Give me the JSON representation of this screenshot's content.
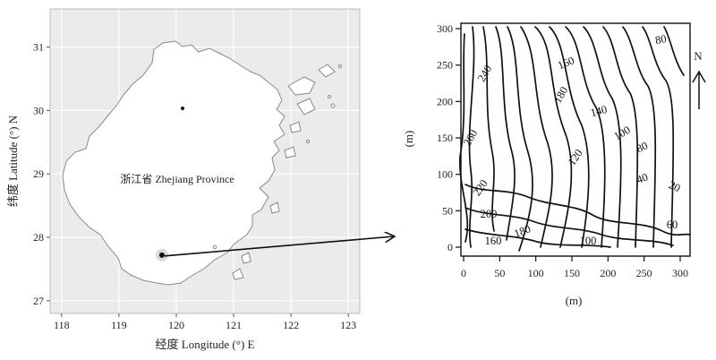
{
  "left_map": {
    "y_axis_label": "纬度 Latitude (°) N",
    "x_axis_label": "经度 Longitude (°) E",
    "x_ticks": [
      "118",
      "119",
      "120",
      "121",
      "122",
      "123"
    ],
    "y_ticks": [
      "27",
      "28",
      "29",
      "30",
      "31"
    ],
    "x_range": [
      117.8,
      123.2
    ],
    "y_range": [
      26.8,
      31.6
    ],
    "province_label": "浙江省 Zhejiang Province",
    "study_site": {
      "lon": 119.75,
      "lat": 27.72
    },
    "colors": {
      "panel_bg": "#ebebeb",
      "grid": "#ffffff",
      "land": "#ffffff",
      "outline": "#8a8a8a"
    }
  },
  "right_plot": {
    "x_axis_label": "(m)",
    "y_axis_label": "(m)",
    "x_ticks": [
      "0",
      "50",
      "100",
      "150",
      "200",
      "250",
      "300"
    ],
    "y_ticks": [
      "0",
      "50",
      "100",
      "150",
      "200",
      "250",
      "300"
    ],
    "north_label": "N",
    "contour_labels": [
      "240",
      "160",
      "80",
      "180",
      "140",
      "100",
      "260",
      "80",
      "120",
      "40",
      "220",
      "20",
      "200",
      "60",
      "160",
      "180",
      "100"
    ]
  }
}
